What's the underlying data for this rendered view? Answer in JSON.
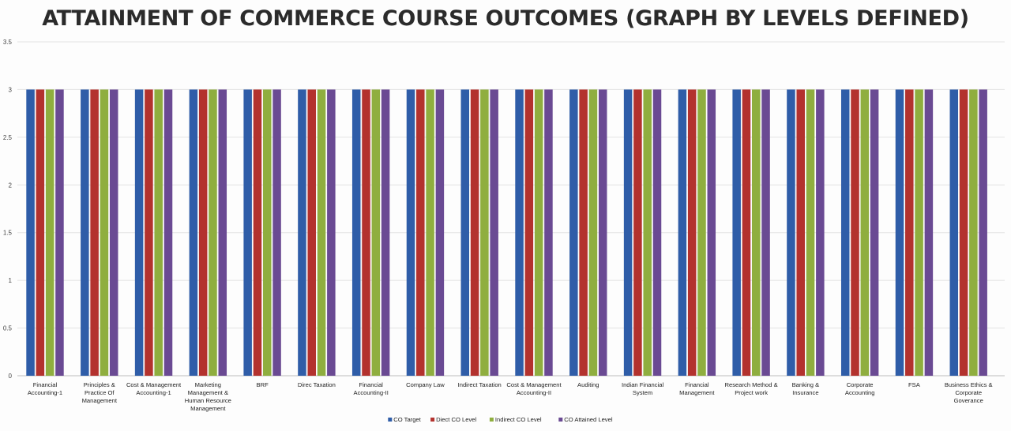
{
  "chart_data": {
    "type": "bar",
    "title": "ATTAINMENT OF COMMERCE COURSE OUTCOMES (GRAPH BY LEVELS DEFINED)",
    "xlabel": "",
    "ylabel": "",
    "ylim": [
      0,
      3.5
    ],
    "yticks": [
      "0",
      "0.5",
      "1",
      "1.5",
      "2",
      "2.5",
      "3",
      "3.5"
    ],
    "grid": true,
    "legend_position": "bottom",
    "categories": [
      "Financial Accounting-1",
      "Principles & Practice Of Management",
      "Cost & Management Accounting-1",
      "Marketing Management & Human Resource Management",
      "BRF",
      "Direc Taxation",
      "Financial Accounting-II",
      "Company Law",
      "Indirect Taxation",
      "Cost & Management Accounting-II",
      "Auditing",
      "Indian Financial System",
      "Financial Management",
      "Research Method & Project work",
      "Banking & Insurance",
      "Corporate Accounting",
      "FSA",
      "Business Ethics & Corporate Goverance"
    ],
    "series": [
      {
        "name": "CO Target",
        "color": "#2f5da8",
        "values": [
          3,
          3,
          3,
          3,
          3,
          3,
          3,
          3,
          3,
          3,
          3,
          3,
          3,
          3,
          3,
          3,
          3,
          3
        ]
      },
      {
        "name": "Diect CO Level",
        "color": "#b3322e",
        "values": [
          3,
          3,
          3,
          3,
          3,
          3,
          3,
          3,
          3,
          3,
          3,
          3,
          3,
          3,
          3,
          3,
          3,
          3
        ]
      },
      {
        "name": "Indirect CO Level",
        "color": "#8fae3f",
        "values": [
          3,
          3,
          3,
          3,
          3,
          3,
          3,
          3,
          3,
          3,
          3,
          3,
          3,
          3,
          3,
          3,
          3,
          3
        ]
      },
      {
        "name": "CO Attained Level",
        "color": "#6a4a93",
        "values": [
          3,
          3,
          3,
          3,
          3,
          3,
          3,
          3,
          3,
          3,
          3,
          3,
          3,
          3,
          3,
          3,
          3,
          3
        ]
      }
    ]
  }
}
